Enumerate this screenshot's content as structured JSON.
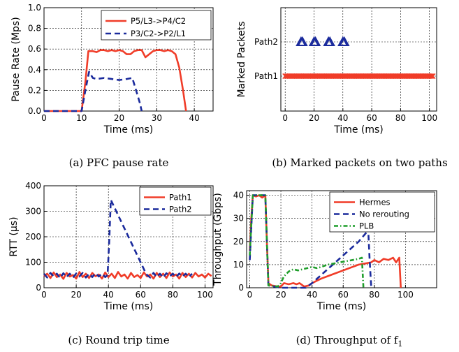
{
  "chart_data": [
    {
      "type": "line",
      "caption": "(a)  PFC pause rate",
      "xlabel": "Time (ms)",
      "ylabel": "Pause Rate (Mps)",
      "xlim": [
        0,
        45
      ],
      "ylim": [
        0,
        1.0
      ],
      "xticks": [
        0,
        10,
        20,
        30,
        40
      ],
      "yticks": [
        0.0,
        0.2,
        0.4,
        0.6,
        0.8,
        1.0
      ],
      "ytick_labels": [
        "0.0",
        "0.2",
        "0.4",
        "0.6",
        "0.8",
        "1.0"
      ],
      "grid": true,
      "legend_position": "top-right",
      "series": [
        {
          "name": "P5/L3->P4/C2",
          "color": "#f03c28",
          "style": "solid",
          "points": [
            [
              0,
              0
            ],
            [
              10,
              0
            ],
            [
              11,
              0.28
            ],
            [
              11.8,
              0.58
            ],
            [
              13,
              0.58
            ],
            [
              14,
              0.57
            ],
            [
              15,
              0.59
            ],
            [
              16,
              0.59
            ],
            [
              17,
              0.58
            ],
            [
              18,
              0.59
            ],
            [
              19,
              0.58
            ],
            [
              20,
              0.59
            ],
            [
              21,
              0.58
            ],
            [
              22,
              0.55
            ],
            [
              23,
              0.55
            ],
            [
              24,
              0.58
            ],
            [
              25,
              0.59
            ],
            [
              26,
              0.59
            ],
            [
              27,
              0.52
            ],
            [
              28,
              0.55
            ],
            [
              29,
              0.58
            ],
            [
              30,
              0.59
            ],
            [
              31,
              0.59
            ],
            [
              32,
              0.58
            ],
            [
              33,
              0.59
            ],
            [
              34,
              0.58
            ],
            [
              35,
              0.55
            ],
            [
              36,
              0.42
            ],
            [
              37,
              0.2
            ],
            [
              37.8,
              0
            ]
          ]
        },
        {
          "name": "P3/C2->P2/L1",
          "color": "#1a2a9c",
          "style": "dashed",
          "points": [
            [
              0,
              0
            ],
            [
              10,
              0
            ],
            [
              11,
              0.2
            ],
            [
              12,
              0.38
            ],
            [
              13,
              0.32
            ],
            [
              14,
              0.31
            ],
            [
              16,
              0.32
            ],
            [
              18,
              0.31
            ],
            [
              20,
              0.3
            ],
            [
              22,
              0.31
            ],
            [
              23.5,
              0.32
            ],
            [
              24.5,
              0.2
            ],
            [
              25.5,
              0.08
            ],
            [
              26,
              0
            ]
          ]
        }
      ]
    },
    {
      "type": "scatter",
      "caption": "(b)  Marked packets on two paths",
      "xlabel": "Time (ms)",
      "ylabel": "Marked Packets",
      "xlim": [
        -3,
        105
      ],
      "xticks": [
        0,
        20,
        40,
        60,
        80,
        100
      ],
      "categories": [
        "Path1",
        "Path2"
      ],
      "grid": true,
      "series": [
        {
          "name": "Path2",
          "color": "#1a2a9c",
          "marker": "triangle",
          "category": "Path2",
          "x": [
            11,
            12,
            20,
            21,
            30,
            31,
            40,
            41
          ]
        },
        {
          "name": "Path1",
          "color": "#f03c28",
          "marker": "x",
          "category": "Path1",
          "x_range": [
            0,
            103
          ],
          "x_step": 0.8
        }
      ]
    },
    {
      "type": "line",
      "caption": "(c)  Round trip time",
      "xlabel": "Time (ms)",
      "ylabel": "RTT (µs)",
      "xlim": [
        0,
        105
      ],
      "ylim": [
        0,
        400
      ],
      "xticks": [
        0,
        20,
        40,
        60,
        80,
        100
      ],
      "yticks": [
        0,
        100,
        200,
        300,
        400
      ],
      "grid": true,
      "legend_position": "top-right",
      "series": [
        {
          "name": "Path1",
          "color": "#f03c28",
          "style": "solid",
          "points": [
            [
              0,
              45
            ],
            [
              2,
              55
            ],
            [
              4,
              38
            ],
            [
              6,
              60
            ],
            [
              8,
              42
            ],
            [
              10,
              52
            ],
            [
              12,
              35
            ],
            [
              14,
              58
            ],
            [
              16,
              44
            ],
            [
              18,
              50
            ],
            [
              20,
              36
            ],
            [
              22,
              62
            ],
            [
              24,
              42
            ],
            [
              26,
              55
            ],
            [
              28,
              38
            ],
            [
              30,
              58
            ],
            [
              32,
              45
            ],
            [
              34,
              52
            ],
            [
              36,
              36
            ],
            [
              38,
              60
            ],
            [
              40,
              42
            ],
            [
              42,
              55
            ],
            [
              44,
              38
            ],
            [
              46,
              62
            ],
            [
              48,
              44
            ],
            [
              50,
              52
            ],
            [
              52,
              36
            ],
            [
              54,
              58
            ],
            [
              56,
              42
            ],
            [
              58,
              50
            ],
            [
              60,
              38
            ],
            [
              62,
              60
            ],
            [
              64,
              44
            ],
            [
              66,
              52
            ],
            [
              68,
              36
            ],
            [
              70,
              58
            ],
            [
              72,
              42
            ],
            [
              74,
              55
            ],
            [
              76,
              38
            ],
            [
              78,
              60
            ],
            [
              80,
              44
            ],
            [
              82,
              52
            ],
            [
              84,
              36
            ],
            [
              86,
              58
            ],
            [
              88,
              42
            ],
            [
              90,
              55
            ],
            [
              92,
              40
            ],
            [
              94,
              58
            ],
            [
              96,
              44
            ],
            [
              98,
              52
            ],
            [
              100,
              40
            ],
            [
              102,
              55
            ],
            [
              104,
              46
            ]
          ]
        },
        {
          "name": "Path2",
          "color": "#1a2a9c",
          "style": "dashed",
          "points": [
            [
              0,
              55
            ],
            [
              2,
              40
            ],
            [
              4,
              58
            ],
            [
              6,
              45
            ],
            [
              8,
              55
            ],
            [
              10,
              38
            ],
            [
              12,
              57
            ],
            [
              14,
              42
            ],
            [
              16,
              55
            ],
            [
              18,
              40
            ],
            [
              20,
              56
            ],
            [
              22,
              44
            ],
            [
              24,
              58
            ],
            [
              26,
              40
            ],
            [
              28,
              55
            ],
            [
              30,
              42
            ],
            [
              32,
              57
            ],
            [
              34,
              44
            ],
            [
              36,
              55
            ],
            [
              38,
              42
            ],
            [
              39.5,
              50
            ],
            [
              40.5,
              180
            ],
            [
              41.5,
              345
            ],
            [
              63,
              60
            ],
            [
              64,
              50
            ],
            [
              66,
              40
            ],
            [
              68,
              58
            ],
            [
              70,
              42
            ],
            [
              72,
              55
            ],
            [
              74,
              40
            ],
            [
              76,
              57
            ],
            [
              78,
              45
            ],
            [
              80,
              55
            ],
            [
              82,
              42
            ],
            [
              84,
              56
            ],
            [
              86,
              44
            ],
            [
              88,
              55
            ],
            [
              90,
              42
            ],
            [
              92,
              55
            ]
          ]
        }
      ]
    },
    {
      "type": "line",
      "caption": "(d)  Throughput of f",
      "caption_subscript": "1",
      "xlabel": "Time (ms)",
      "ylabel": "Throughput (Gbps)",
      "xlim": [
        -2,
        120
      ],
      "ylim": [
        0,
        42
      ],
      "xticks": [
        0,
        20,
        40,
        60,
        80,
        100
      ],
      "yticks": [
        0,
        10,
        20,
        30,
        40
      ],
      "grid": true,
      "legend_position": "top-right",
      "series": [
        {
          "name": "Hermes",
          "color": "#f03c28",
          "style": "solid",
          "points": [
            [
              0,
              16
            ],
            [
              1,
              30
            ],
            [
              2,
              40
            ],
            [
              4,
              39.5
            ],
            [
              6,
              40
            ],
            [
              8,
              39
            ],
            [
              10,
              40
            ],
            [
              11,
              20
            ],
            [
              12,
              2
            ],
            [
              14,
              1
            ],
            [
              18,
              0.5
            ],
            [
              20,
              0.5
            ],
            [
              22,
              2
            ],
            [
              25,
              1.5
            ],
            [
              28,
              2
            ],
            [
              30,
              1.5
            ],
            [
              32,
              2
            ],
            [
              35,
              0.5
            ],
            [
              38,
              1
            ],
            [
              40,
              2
            ],
            [
              43,
              3
            ],
            [
              46,
              4
            ],
            [
              50,
              5
            ],
            [
              54,
              6
            ],
            [
              58,
              7
            ],
            [
              62,
              8
            ],
            [
              66,
              9
            ],
            [
              70,
              10
            ],
            [
              74,
              10.5
            ],
            [
              78,
              11
            ],
            [
              80,
              12
            ],
            [
              83,
              11
            ],
            [
              86,
              12.5
            ],
            [
              89,
              12
            ],
            [
              92,
              13
            ],
            [
              94,
              11
            ],
            [
              96,
              13
            ],
            [
              97,
              0
            ]
          ]
        },
        {
          "name": "No rerouting",
          "color": "#1a2a9c",
          "style": "dashed",
          "points": [
            [
              0,
              12
            ],
            [
              2,
              40
            ],
            [
              10,
              40
            ],
            [
              11,
              20
            ],
            [
              12,
              1
            ],
            [
              20,
              0
            ],
            [
              30,
              0
            ],
            [
              36,
              0
            ],
            [
              40,
              2
            ],
            [
              45,
              5
            ],
            [
              50,
              8
            ],
            [
              55,
              11
            ],
            [
              60,
              14
            ],
            [
              65,
              17
            ],
            [
              70,
              20
            ],
            [
              75,
              24
            ],
            [
              76,
              26
            ],
            [
              77,
              12
            ],
            [
              78,
              0
            ]
          ]
        },
        {
          "name": "PLB",
          "color": "#1f9e2b",
          "style": "dashdot",
          "points": [
            [
              0,
              14
            ],
            [
              2,
              40
            ],
            [
              10,
              40
            ],
            [
              11,
              20
            ],
            [
              12,
              1
            ],
            [
              18,
              0.5
            ],
            [
              20,
              2
            ],
            [
              22,
              5
            ],
            [
              25,
              7
            ],
            [
              28,
              8
            ],
            [
              31,
              7.5
            ],
            [
              34,
              8
            ],
            [
              37,
              8.5
            ],
            [
              40,
              9
            ],
            [
              43,
              8.5
            ],
            [
              46,
              9
            ],
            [
              50,
              10
            ],
            [
              54,
              10.5
            ],
            [
              58,
              11
            ],
            [
              62,
              11.5
            ],
            [
              66,
              12
            ],
            [
              70,
              12.5
            ],
            [
              72,
              13
            ],
            [
              73,
              0
            ]
          ]
        }
      ]
    }
  ]
}
